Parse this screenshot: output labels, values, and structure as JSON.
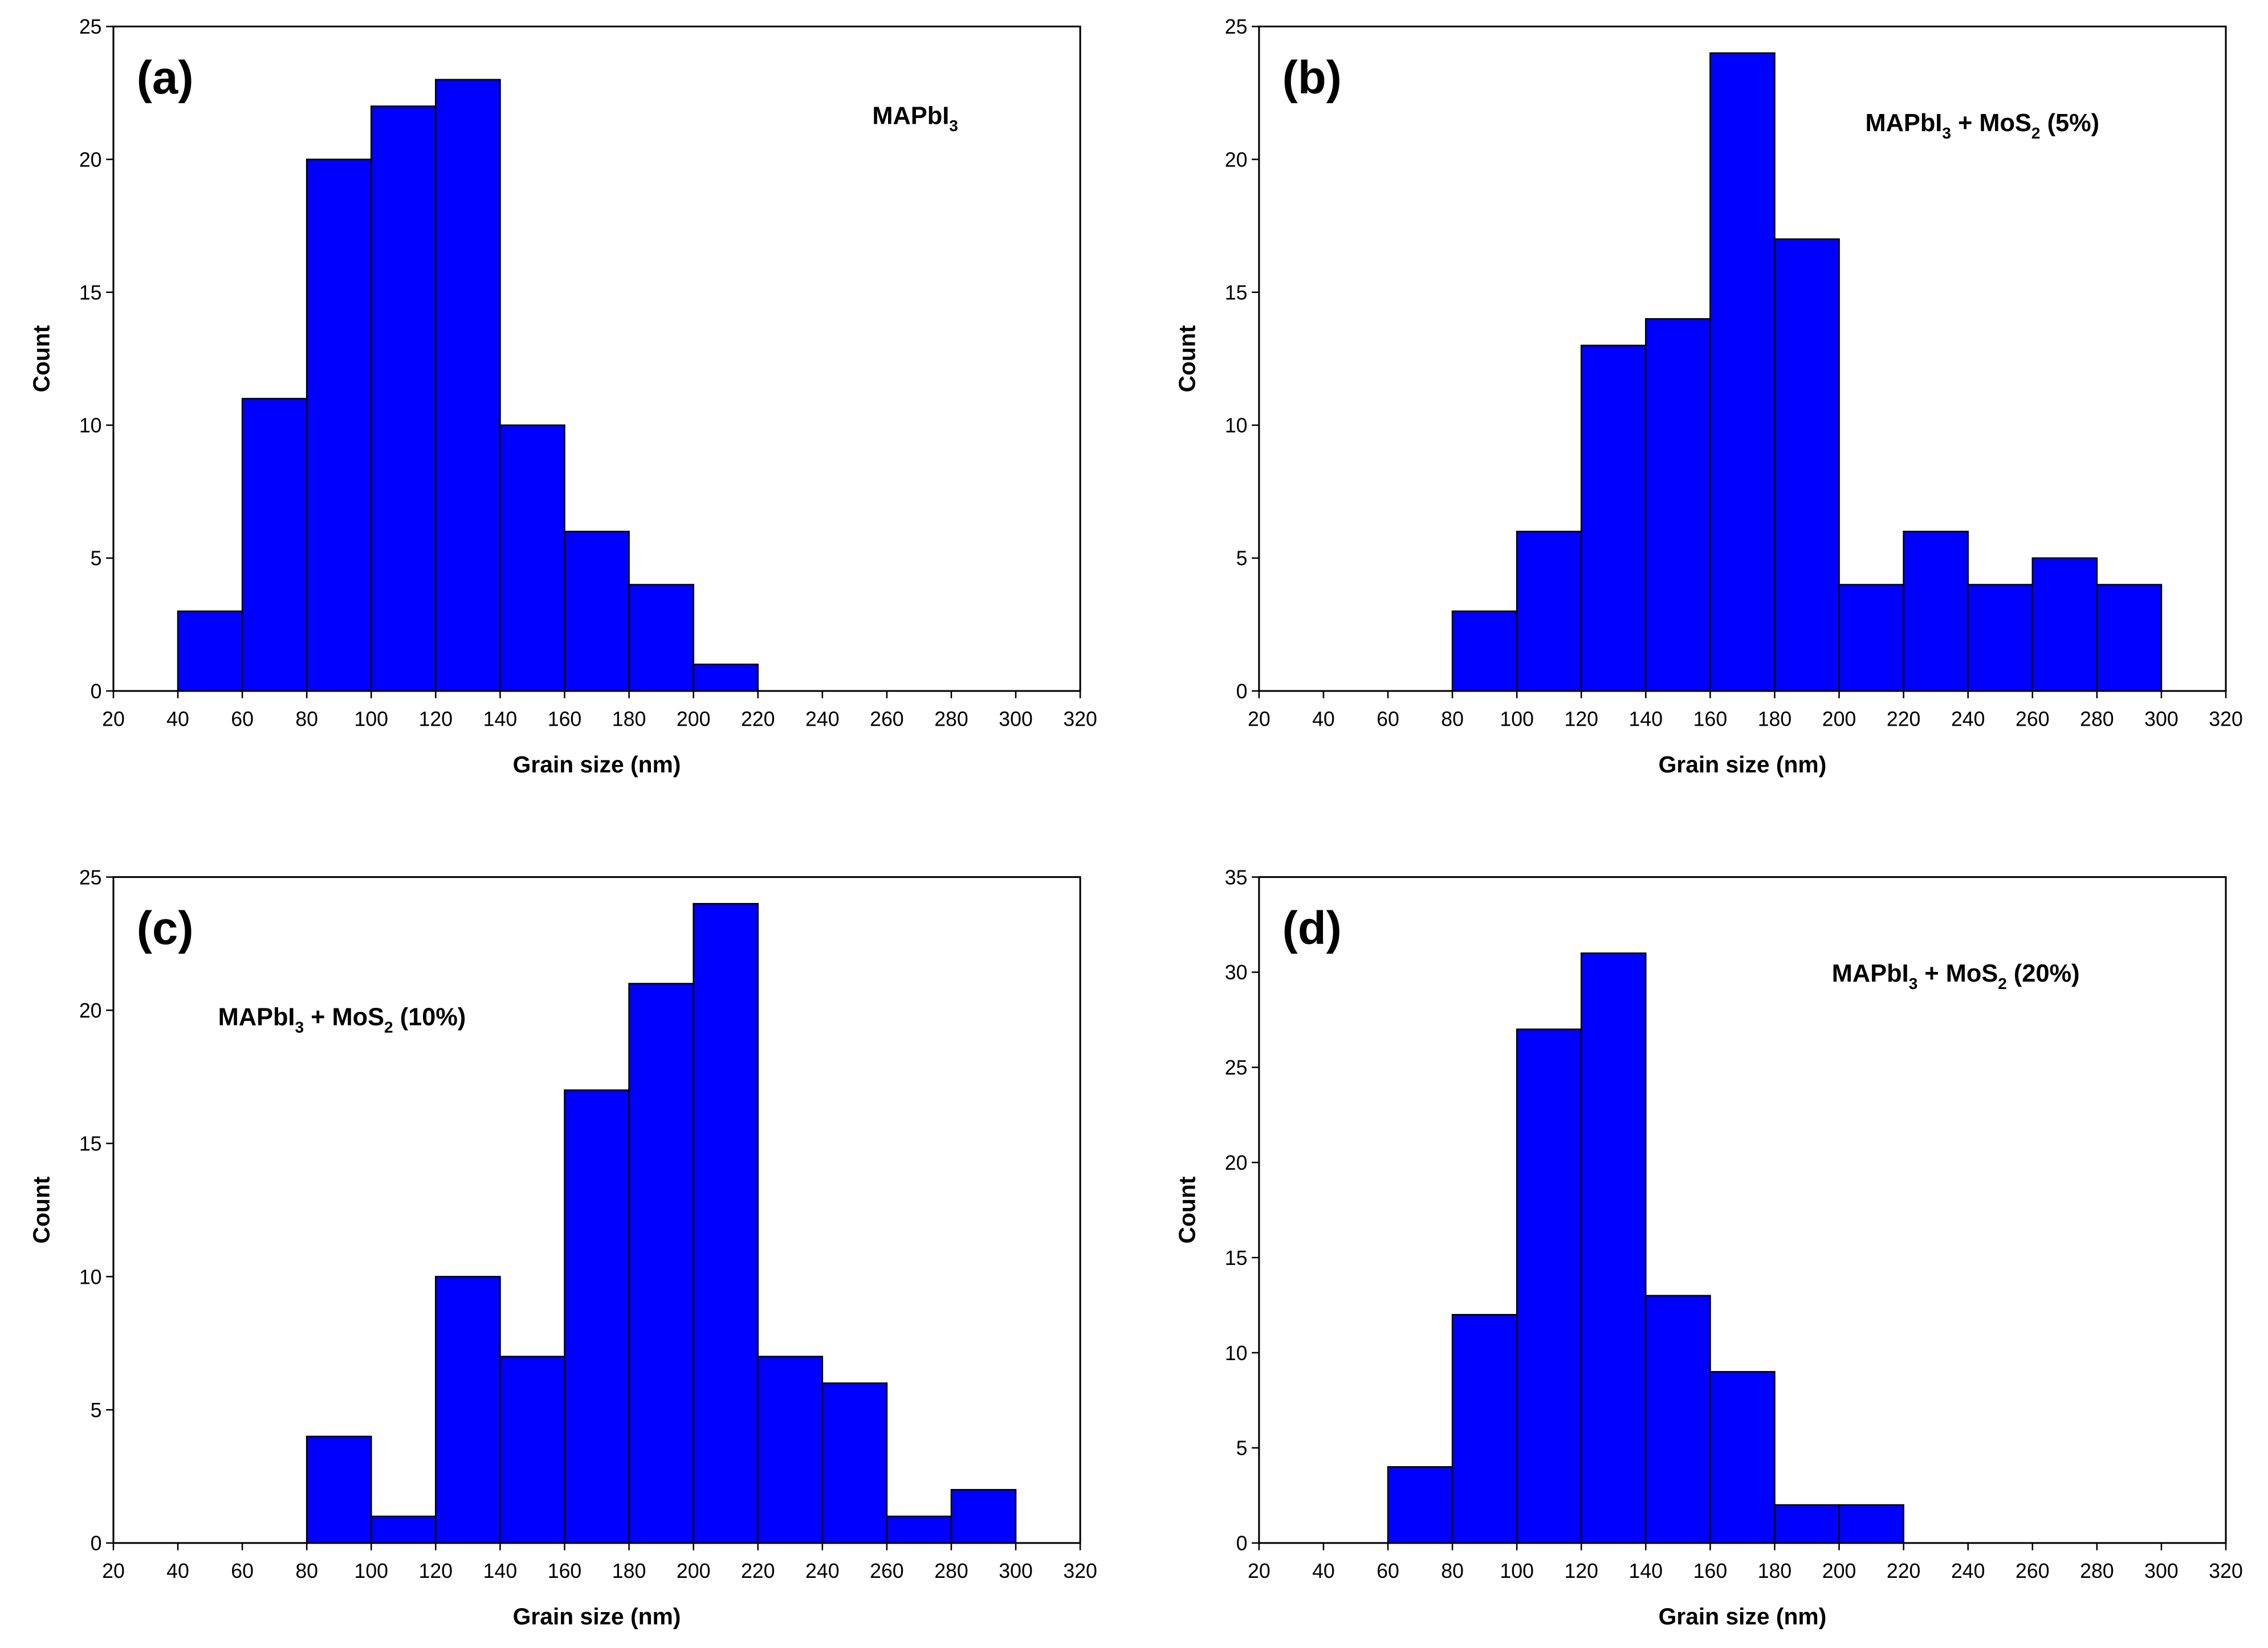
{
  "chart_data": [
    {
      "type": "histogram",
      "panel_label": "(a)",
      "annotation": [
        {
          "text": "MAPbI"
        },
        {
          "text": "3",
          "sub": true
        }
      ],
      "bins": [
        40,
        60,
        80,
        100,
        120,
        140,
        160,
        180,
        200,
        220
      ],
      "values": [
        3,
        11,
        20,
        22,
        23,
        10,
        6,
        4,
        1
      ],
      "color": "#0000ff",
      "x_label": "Grain size (nm)",
      "y_label": "Count",
      "xlim": [
        20,
        320
      ],
      "xticks": [
        20,
        40,
        60,
        80,
        100,
        120,
        140,
        160,
        180,
        200,
        220,
        240,
        260,
        280,
        300,
        320
      ],
      "ylim": [
        0,
        25
      ],
      "yticks": [
        0,
        5,
        10,
        15,
        20,
        25
      ]
    },
    {
      "type": "histogram",
      "panel_label": "(b)",
      "annotation": [
        {
          "text": "MAPbI"
        },
        {
          "text": "3",
          "sub": true
        },
        {
          "text": " + MoS"
        },
        {
          "text": "2",
          "sub": true
        },
        {
          "text": " (5%)"
        }
      ],
      "bins": [
        80,
        100,
        120,
        140,
        160,
        180,
        200,
        220,
        240,
        260,
        280,
        300
      ],
      "values": [
        3,
        6,
        13,
        14,
        24,
        17,
        4,
        6,
        4,
        5,
        4
      ],
      "color": "#0000ff",
      "x_label": "Grain size (nm)",
      "y_label": "Count",
      "xlim": [
        20,
        320
      ],
      "xticks": [
        20,
        40,
        60,
        80,
        100,
        120,
        140,
        160,
        180,
        200,
        220,
        240,
        260,
        280,
        300,
        320
      ],
      "ylim": [
        0,
        25
      ],
      "yticks": [
        0,
        5,
        10,
        15,
        20,
        25
      ]
    },
    {
      "type": "histogram",
      "panel_label": "(c)",
      "annotation": [
        {
          "text": "MAPbI"
        },
        {
          "text": "3",
          "sub": true
        },
        {
          "text": " + MoS"
        },
        {
          "text": "2",
          "sub": true
        },
        {
          "text": " (10%)"
        }
      ],
      "bins": [
        80,
        100,
        120,
        140,
        160,
        180,
        200,
        220,
        240,
        260,
        280,
        300
      ],
      "values": [
        4,
        1,
        10,
        7,
        17,
        21,
        24,
        7,
        6,
        1,
        2
      ],
      "color": "#0000ff",
      "x_label": "Grain size (nm)",
      "y_label": "Count",
      "xlim": [
        20,
        320
      ],
      "xticks": [
        20,
        40,
        60,
        80,
        100,
        120,
        140,
        160,
        180,
        200,
        220,
        240,
        260,
        280,
        300,
        320
      ],
      "ylim": [
        0,
        25
      ],
      "yticks": [
        0,
        5,
        10,
        15,
        20,
        25
      ]
    },
    {
      "type": "histogram",
      "panel_label": "(d)",
      "annotation": [
        {
          "text": "MAPbI"
        },
        {
          "text": "3",
          "sub": true
        },
        {
          "text": " + MoS"
        },
        {
          "text": "2",
          "sub": true
        },
        {
          "text": " (20%)"
        }
      ],
      "bins": [
        60,
        80,
        100,
        120,
        140,
        160,
        180,
        200,
        220
      ],
      "values": [
        4,
        12,
        27,
        31,
        13,
        9,
        2,
        2
      ],
      "color": "#0000ff",
      "x_label": "Grain size (nm)",
      "y_label": "Count",
      "xlim": [
        20,
        320
      ],
      "xticks": [
        20,
        40,
        60,
        80,
        100,
        120,
        140,
        160,
        180,
        200,
        220,
        240,
        260,
        280,
        300,
        320
      ],
      "ylim": [
        0,
        35
      ],
      "yticks": [
        0,
        5,
        10,
        15,
        20,
        25,
        30,
        35
      ]
    }
  ]
}
